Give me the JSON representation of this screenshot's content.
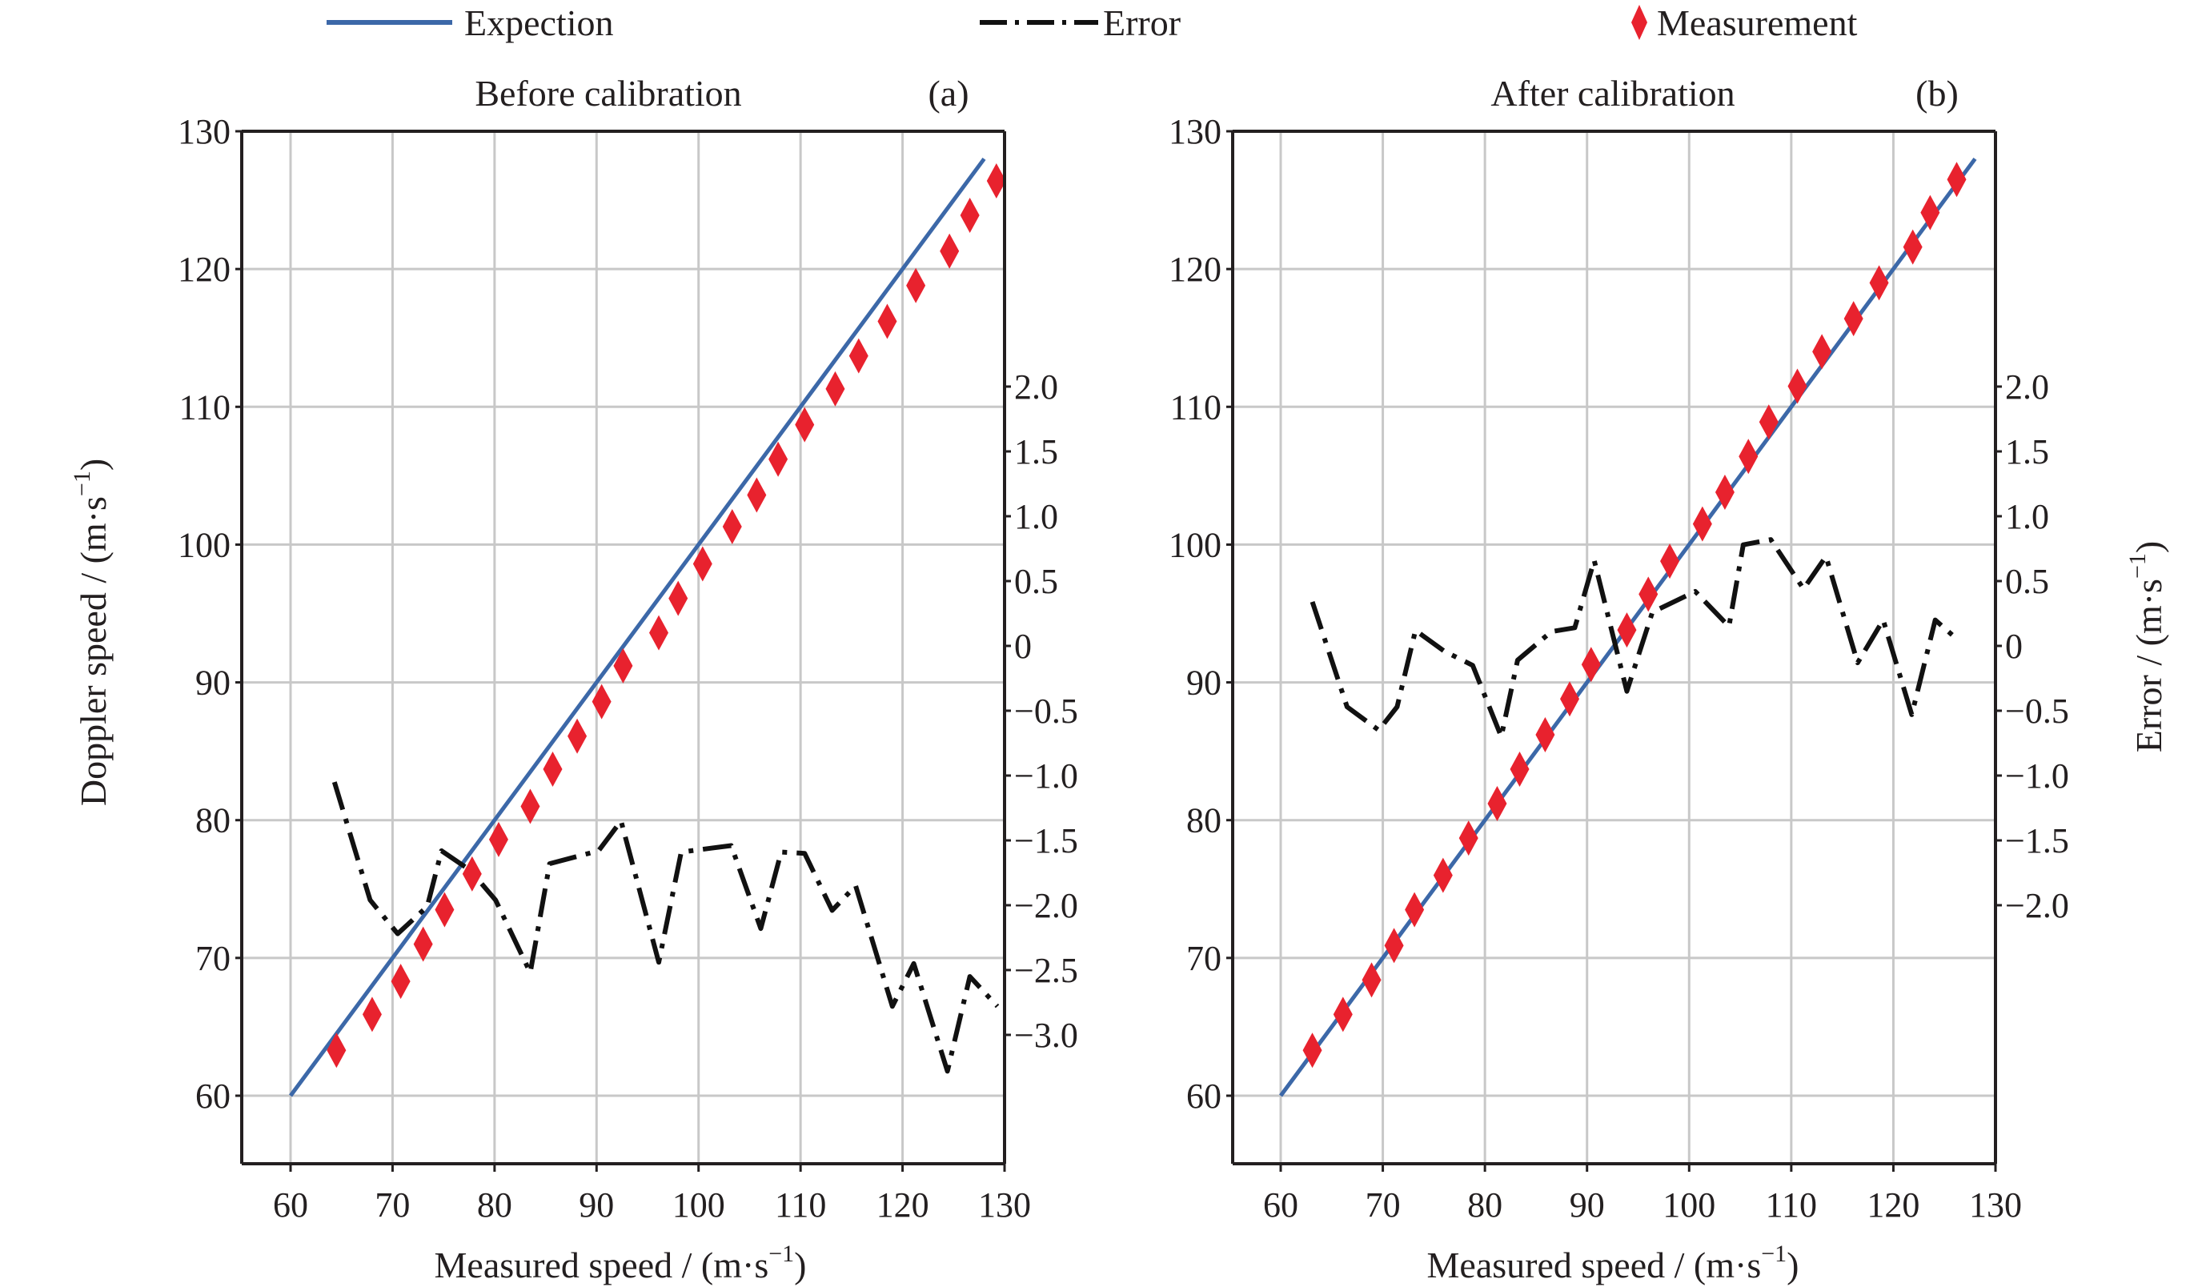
{
  "legend": {
    "items": [
      {
        "label": "Expection",
        "type": "line",
        "color": "#3c68a8"
      },
      {
        "label": "Error",
        "type": "dashdot",
        "color": "#111111"
      },
      {
        "label": "Measurement",
        "type": "diamond",
        "color": "#e8222e"
      }
    ]
  },
  "colors": {
    "expection": "#3c68a8",
    "error": "#111111",
    "measurement": "#e8222e",
    "grid": "#c8c8c8",
    "axis": "#231f20"
  },
  "chart_data": [
    {
      "id": "a",
      "type": "line",
      "title": "Before calibration",
      "panel_label": "(a)",
      "xlabel": "Measured speed / (m·s",
      "xlabel_sup": "−1",
      "xlabel_end": ")",
      "ylabel": "Doppler speed / (m·s",
      "ylabel_sup": "−1",
      "ylabel_end": ")",
      "xlim": [
        55,
        130
      ],
      "ylim": [
        55,
        130
      ],
      "x_ticks": [
        "60",
        "70",
        "80",
        "90",
        "100",
        "110",
        "120",
        "130"
      ],
      "x_tick_values": [
        60,
        70,
        80,
        90,
        100,
        110,
        120,
        130
      ],
      "y_ticks": [
        "60",
        "70",
        "80",
        "90",
        "100",
        "110",
        "120",
        "130"
      ],
      "y_tick_values": [
        60,
        70,
        80,
        90,
        100,
        110,
        120,
        130
      ],
      "y2_ticks": [
        "2.0",
        "1.5",
        "1.0",
        "0.5",
        "0",
        "−0.5",
        "−1.0",
        "−1.5",
        "−2.0",
        "−2.5",
        "−3.0"
      ],
      "y2_tick_values": [
        2.0,
        1.5,
        1.0,
        0.5,
        0,
        -0.5,
        -1.0,
        -1.5,
        -2.0,
        -2.5,
        -3.0
      ],
      "grid": true,
      "series": [
        {
          "name": "Expection",
          "x": [
            60,
            128
          ],
          "y": [
            60,
            128
          ]
        },
        {
          "name": "Measurement",
          "x": [
            64.5,
            68.0,
            70.8,
            73.0,
            75.1,
            77.8,
            80.4,
            83.5,
            85.7,
            88.1,
            90.5,
            92.6,
            96.1,
            98.0,
            100.4,
            103.3,
            105.7,
            107.8,
            110.4,
            113.4,
            115.7,
            118.5,
            121.3,
            124.6,
            126.6,
            129.2
          ],
          "y": [
            63.3,
            65.9,
            68.3,
            71.0,
            73.5,
            76.1,
            78.6,
            81.0,
            83.7,
            86.1,
            88.6,
            91.2,
            93.6,
            96.1,
            98.6,
            101.3,
            103.6,
            106.2,
            108.7,
            111.3,
            113.7,
            116.2,
            118.8,
            121.3,
            123.9,
            126.4
          ]
        },
        {
          "name": "Error",
          "axis": "right",
          "x": [
            64.3,
            67.8,
            70.5,
            73.4,
            74.8,
            77.6,
            80.1,
            83.5,
            85.4,
            90.2,
            92.4,
            96.1,
            98.3,
            103.2,
            106.1,
            108.1,
            110.4,
            113.1,
            115.4,
            119.0,
            121.1,
            124.4,
            126.6,
            129.3
          ],
          "y": [
            -1.05,
            -1.96,
            -2.22,
            -2.01,
            -1.58,
            -1.73,
            -1.96,
            -2.52,
            -1.68,
            -1.58,
            -1.35,
            -2.44,
            -1.59,
            -1.54,
            -2.18,
            -1.59,
            -1.6,
            -2.04,
            -1.85,
            -2.78,
            -2.45,
            -3.28,
            -2.55,
            -2.78
          ]
        }
      ]
    },
    {
      "id": "b",
      "type": "line",
      "title": "After calibration",
      "panel_label": "(b)",
      "xlabel": "Measured speed / (m·s",
      "xlabel_sup": "−1",
      "xlabel_end": ")",
      "ylabel": "Error / (m·s",
      "ylabel_sup": "−1",
      "ylabel_end": ")",
      "xlim": [
        55,
        130
      ],
      "ylim": [
        55,
        130
      ],
      "x_ticks": [
        "60",
        "70",
        "80",
        "90",
        "100",
        "110",
        "120",
        "130"
      ],
      "x_tick_values": [
        60,
        70,
        80,
        90,
        100,
        110,
        120,
        130
      ],
      "y_ticks": [
        "60",
        "70",
        "80",
        "90",
        "100",
        "110",
        "120",
        "130"
      ],
      "y_tick_values": [
        60,
        70,
        80,
        90,
        100,
        110,
        120,
        130
      ],
      "y2_ticks": [
        "2.0",
        "1.5",
        "1.0",
        "0.5",
        "0",
        "−0.5",
        "−1.0",
        "−1.5",
        "−2.0"
      ],
      "y2_tick_values": [
        2.0,
        1.5,
        1.0,
        0.5,
        0,
        -0.5,
        -1.0,
        -1.5,
        -2.0
      ],
      "grid": true,
      "series": [
        {
          "name": "Expection",
          "x": [
            60,
            128
          ],
          "y": [
            60,
            128
          ]
        },
        {
          "name": "Measurement",
          "x": [
            63.1,
            66.1,
            68.9,
            71.1,
            73.1,
            75.9,
            78.4,
            81.2,
            83.4,
            85.9,
            88.3,
            90.4,
            93.9,
            96.0,
            98.1,
            101.3,
            103.5,
            105.8,
            107.8,
            110.6,
            113.0,
            116.1,
            118.6,
            121.9,
            123.6,
            126.2
          ],
          "y": [
            63.3,
            65.9,
            68.4,
            70.9,
            73.5,
            76.0,
            78.7,
            81.2,
            83.7,
            86.2,
            88.8,
            91.3,
            93.8,
            96.4,
            98.8,
            101.5,
            103.8,
            106.4,
            108.9,
            111.5,
            114.0,
            116.4,
            119.0,
            121.6,
            124.1,
            126.5
          ]
        },
        {
          "name": "Error",
          "axis": "right",
          "x": [
            63.1,
            66.5,
            69.6,
            71.4,
            73.2,
            76.0,
            78.8,
            81.6,
            83.2,
            86.5,
            88.8,
            90.7,
            93.9,
            96.4,
            100.6,
            103.9,
            105.3,
            108.0,
            111.2,
            113.4,
            116.5,
            119.0,
            121.8,
            124.1,
            126.4
          ],
          "y": [
            0.34,
            -0.47,
            -0.65,
            -0.47,
            0.12,
            -0.04,
            -0.15,
            -0.7,
            -0.11,
            0.11,
            0.14,
            0.66,
            -0.35,
            0.26,
            0.42,
            0.15,
            0.78,
            0.82,
            0.44,
            0.69,
            -0.13,
            0.2,
            -0.53,
            0.2,
            0.04
          ]
        }
      ]
    }
  ]
}
